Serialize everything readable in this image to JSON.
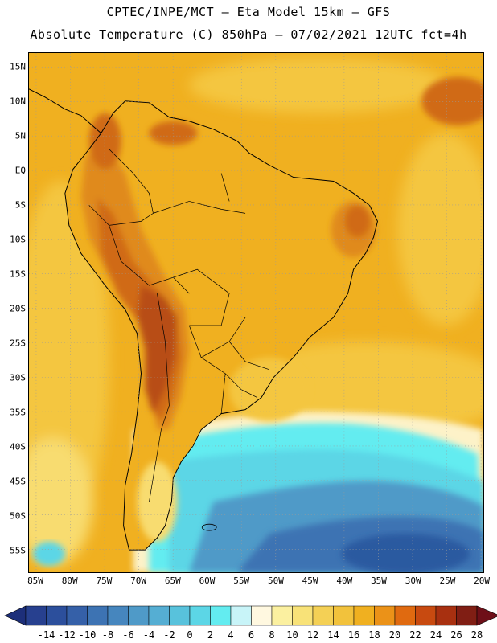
{
  "header": {
    "line1": "CPTEC/INPE/MCT –  Eta Model 15km – GFS",
    "line2": "Absolute Temperature (C) 850hPa – 07/02/2021 12UTC fct=4h"
  },
  "axes": {
    "lat_labels": [
      "15N",
      "10N",
      "5N",
      "EQ",
      "5S",
      "10S",
      "15S",
      "20S",
      "25S",
      "30S",
      "35S",
      "40S",
      "45S",
      "50S",
      "55S"
    ],
    "lon_labels": [
      "85W",
      "80W",
      "75W",
      "70W",
      "65W",
      "60W",
      "55W",
      "50W",
      "45W",
      "40W",
      "35W",
      "30W",
      "25W",
      "20W"
    ]
  },
  "colorbar": {
    "labels": [
      "-14",
      "-12",
      "-10",
      "-8",
      "-6",
      "-4",
      "-2",
      "0",
      "2",
      "4",
      "6",
      "8",
      "10",
      "12",
      "14",
      "16",
      "18",
      "20",
      "22",
      "24",
      "26",
      "28"
    ],
    "colors": [
      "#27408f",
      "#2c4f9c",
      "#3560a8",
      "#3d73b3",
      "#4686be",
      "#4f9ac8",
      "#55aed3",
      "#58c2dc",
      "#5cd6e6",
      "#63ecf0",
      "#c8f4f8",
      "#fff8e0",
      "#fbf0a0",
      "#f8e278",
      "#f4d055",
      "#f2c23c",
      "#f0b020",
      "#eb9218",
      "#e06a10",
      "#c84a10",
      "#a83010",
      "#801e14"
    ],
    "under_color": "#1d2f7a",
    "over_color": "#6e0f18"
  },
  "map_colors": {
    "ocean_warm": "#f0b020",
    "land_base": "#f0b020",
    "hot": "#e08a1a",
    "hotter": "#d06a18",
    "hottest": "#b84e12",
    "mild": "#f4c640",
    "mild2": "#f8dc70",
    "cool_pale": "#fdf2c8",
    "cyan_bright": "#63ecf0",
    "cyan_mid": "#5cd6e6",
    "blue_light": "#4f9ac8",
    "blue_mid": "#3d73b3",
    "blue_deep": "#2c5aa0",
    "coast": "#000000"
  }
}
